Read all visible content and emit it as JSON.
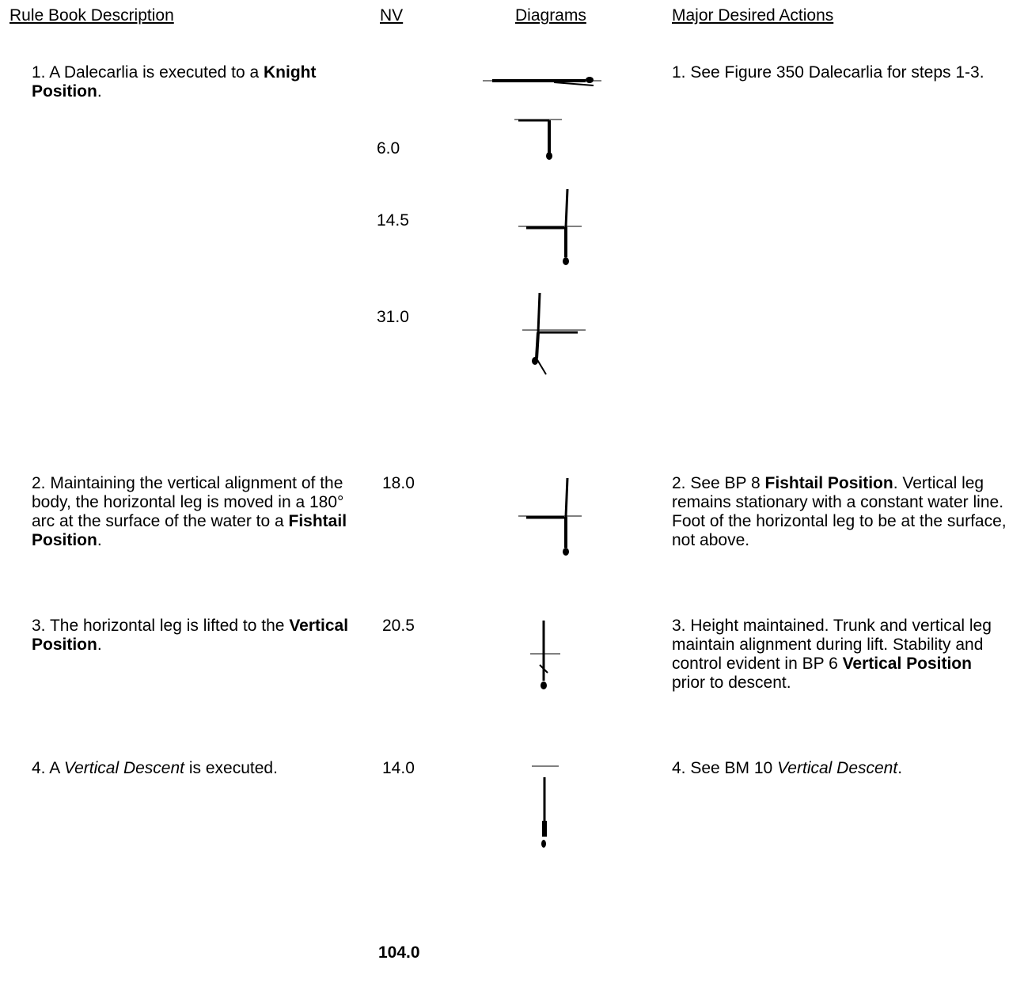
{
  "header": [
    "Rule Book Description",
    "NV",
    "Diagrams",
    "Major Desired Actions"
  ],
  "rows": [
    {
      "description": [
        "1. A Dalecarlia is executed to a ",
        "Knight Position",
        "."
      ],
      "nv": [
        "6.0",
        "14.5",
        "31.0"
      ],
      "actions": [
        "1. See Figure 350 Dalecarlia for steps 1-3."
      ]
    },
    {
      "description": [
        "2.  Maintaining the vertical alignment of the body, the horizontal leg is moved in a 180° arc at the surface of the water to a ",
        "Fishtail Position",
        "."
      ],
      "nv": [
        "18.0"
      ],
      "actions": [
        "2. See BP 8 ",
        "Fishtail Position",
        ". Vertical leg remains stationary with a constant water line. Foot of the horizontal leg to be at the surface, not above."
      ]
    },
    {
      "description": [
        "3. The horizontal leg is lifted to the ",
        "Vertical Position",
        "."
      ],
      "nv": [
        "20.5"
      ],
      "actions": [
        "3. Height maintained. Trunk and vertical leg maintain alignment during lift. Stability and control evident in BP 6 ",
        "Vertical Position",
        " prior to descent."
      ]
    },
    {
      "description": [
        "4. A ",
        "Vertical Descent",
        " is executed."
      ],
      "nv": [
        "14.0"
      ],
      "actions": [
        "4. See BM 10 ",
        "Vertical Descent",
        "."
      ]
    }
  ],
  "total": "104.0"
}
